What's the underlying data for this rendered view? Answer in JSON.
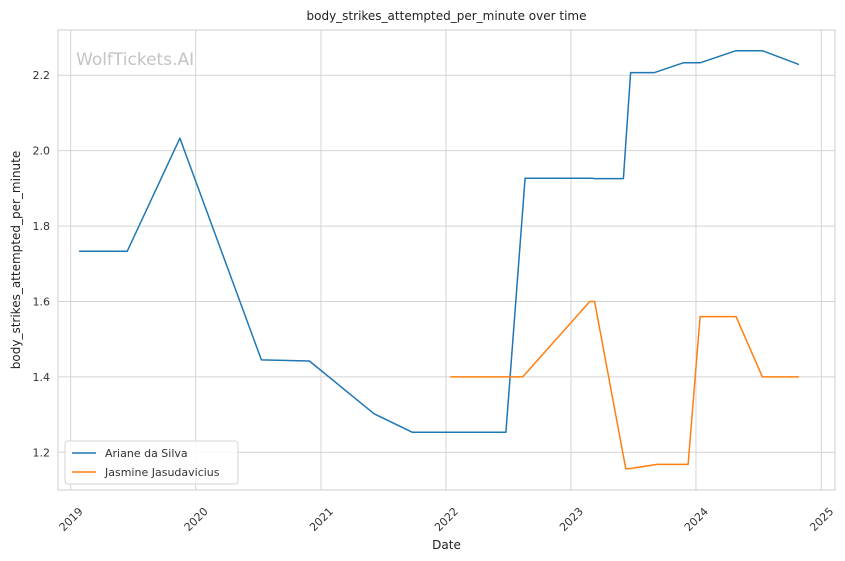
{
  "chart_data": {
    "type": "line",
    "title": "body_strikes_attempted_per_minute over time",
    "xlabel": "Date",
    "ylabel": "body_strikes_attempted_per_minute",
    "watermark": "WolfTickets.AI",
    "xlim": [
      "2018-11-25",
      "2025-02-10"
    ],
    "ylim": [
      1.1,
      2.32
    ],
    "x_ticks": [
      "2019",
      "2020",
      "2021",
      "2022",
      "2023",
      "2024",
      "2025"
    ],
    "y_ticks": [
      1.2,
      1.4,
      1.6,
      1.8,
      2.0,
      2.2
    ],
    "y_tick_labels": [
      "1.2",
      "1.4",
      "1.6",
      "1.8",
      "2.0",
      "2.2"
    ],
    "grid": true,
    "legend_position": "lower-left",
    "series": [
      {
        "name": "Ariane da Silva",
        "color": "#1f77b4",
        "points": [
          [
            "2019-01-27",
            1.733
          ],
          [
            "2019-06-15",
            1.733
          ],
          [
            "2019-11-16",
            2.033
          ],
          [
            "2020-07-11",
            1.445
          ],
          [
            "2020-11-28",
            1.442
          ],
          [
            "2021-06-05",
            1.302
          ],
          [
            "2021-09-25",
            1.253
          ],
          [
            "2022-06-25",
            1.253
          ],
          [
            "2022-08-20",
            1.927
          ],
          [
            "2023-03-04",
            1.927
          ],
          [
            "2023-03-11",
            1.926
          ],
          [
            "2023-06-03",
            1.926
          ],
          [
            "2023-06-24",
            2.207
          ],
          [
            "2023-09-02",
            2.207
          ],
          [
            "2023-11-25",
            2.233
          ],
          [
            "2024-01-13",
            2.233
          ],
          [
            "2024-04-27",
            2.265
          ],
          [
            "2024-07-13",
            2.265
          ],
          [
            "2024-10-26",
            2.229
          ]
        ]
      },
      {
        "name": "Jasmine Jasudavicius",
        "color": "#ff7f0e",
        "points": [
          [
            "2022-01-15",
            1.4
          ],
          [
            "2022-08-13",
            1.4
          ],
          [
            "2023-02-25",
            1.6
          ],
          [
            "2023-03-11",
            1.6
          ],
          [
            "2023-06-10",
            1.156
          ],
          [
            "2023-06-24",
            1.157
          ],
          [
            "2023-09-09",
            1.168
          ],
          [
            "2023-12-09",
            1.168
          ],
          [
            "2024-01-13",
            1.56
          ],
          [
            "2024-04-27",
            1.56
          ],
          [
            "2024-07-13",
            1.4
          ],
          [
            "2024-10-26",
            1.4
          ]
        ]
      }
    ]
  }
}
